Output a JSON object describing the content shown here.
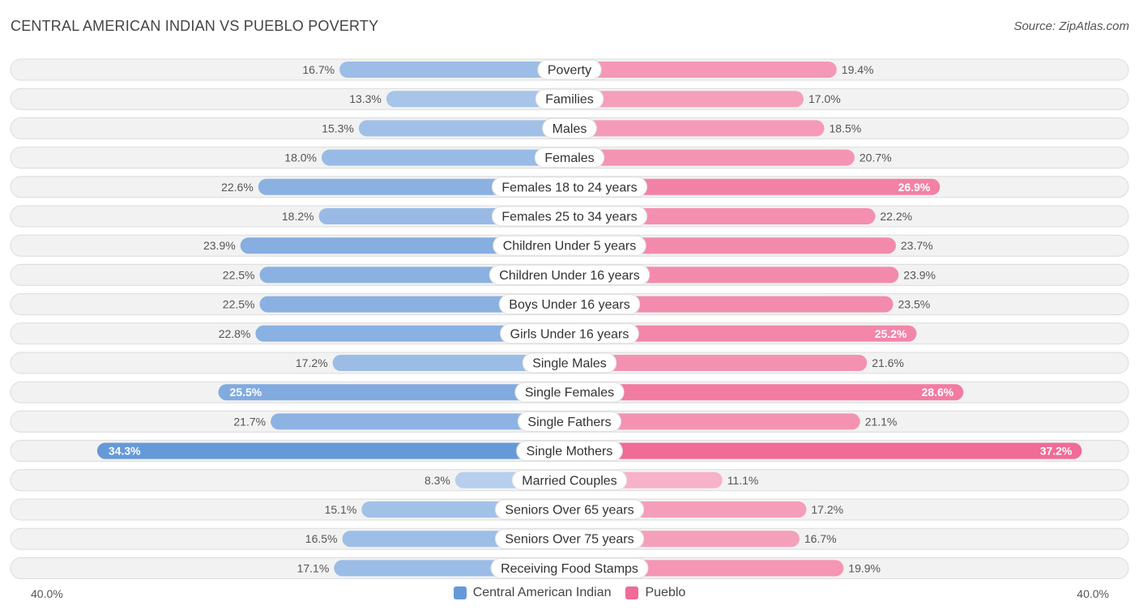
{
  "title": "CENTRAL AMERICAN INDIAN VS PUEBLO POVERTY",
  "source": "Source: ZipAtlas.com",
  "axis": {
    "left_label": "40.0%",
    "right_label": "40.0%"
  },
  "legend": {
    "left": {
      "label": "Central American Indian",
      "color": "#6699d8"
    },
    "right": {
      "label": "Pueblo",
      "color": "#f06b96"
    }
  },
  "chart_data": {
    "type": "bar",
    "orientation": "diverging-horizontal",
    "title": "CENTRAL AMERICAN INDIAN VS PUEBLO POVERTY",
    "xlim": [
      -40,
      40
    ],
    "unit": "%",
    "categories": [
      "Poverty",
      "Families",
      "Males",
      "Females",
      "Females 18 to 24 years",
      "Females 25 to 34 years",
      "Children Under 5 years",
      "Children Under 16 years",
      "Boys Under 16 years",
      "Girls Under 16 years",
      "Single Males",
      "Single Females",
      "Single Fathers",
      "Single Mothers",
      "Married Couples",
      "Seniors Over 65 years",
      "Seniors Over 75 years",
      "Receiving Food Stamps"
    ],
    "series": [
      {
        "name": "Central American Indian",
        "values": [
          16.7,
          13.3,
          15.3,
          18.0,
          22.6,
          18.2,
          23.9,
          22.5,
          22.5,
          22.8,
          17.2,
          25.5,
          21.7,
          34.3,
          8.3,
          15.1,
          16.5,
          17.1
        ],
        "labels": [
          "16.7%",
          "13.3%",
          "15.3%",
          "18.0%",
          "22.6%",
          "18.2%",
          "23.9%",
          "22.5%",
          "22.5%",
          "22.8%",
          "17.2%",
          "25.5%",
          "21.7%",
          "34.3%",
          "8.3%",
          "15.1%",
          "16.5%",
          "17.1%"
        ]
      },
      {
        "name": "Pueblo",
        "values": [
          19.4,
          17.0,
          18.5,
          20.7,
          26.9,
          22.2,
          23.7,
          23.9,
          23.5,
          25.2,
          21.6,
          28.6,
          21.1,
          37.2,
          11.1,
          17.2,
          16.7,
          19.9
        ],
        "labels": [
          "19.4%",
          "17.0%",
          "18.5%",
          "20.7%",
          "26.9%",
          "22.2%",
          "23.7%",
          "23.9%",
          "23.5%",
          "25.2%",
          "21.6%",
          "28.6%",
          "21.1%",
          "37.2%",
          "11.1%",
          "17.2%",
          "16.7%",
          "19.9%"
        ]
      }
    ]
  }
}
